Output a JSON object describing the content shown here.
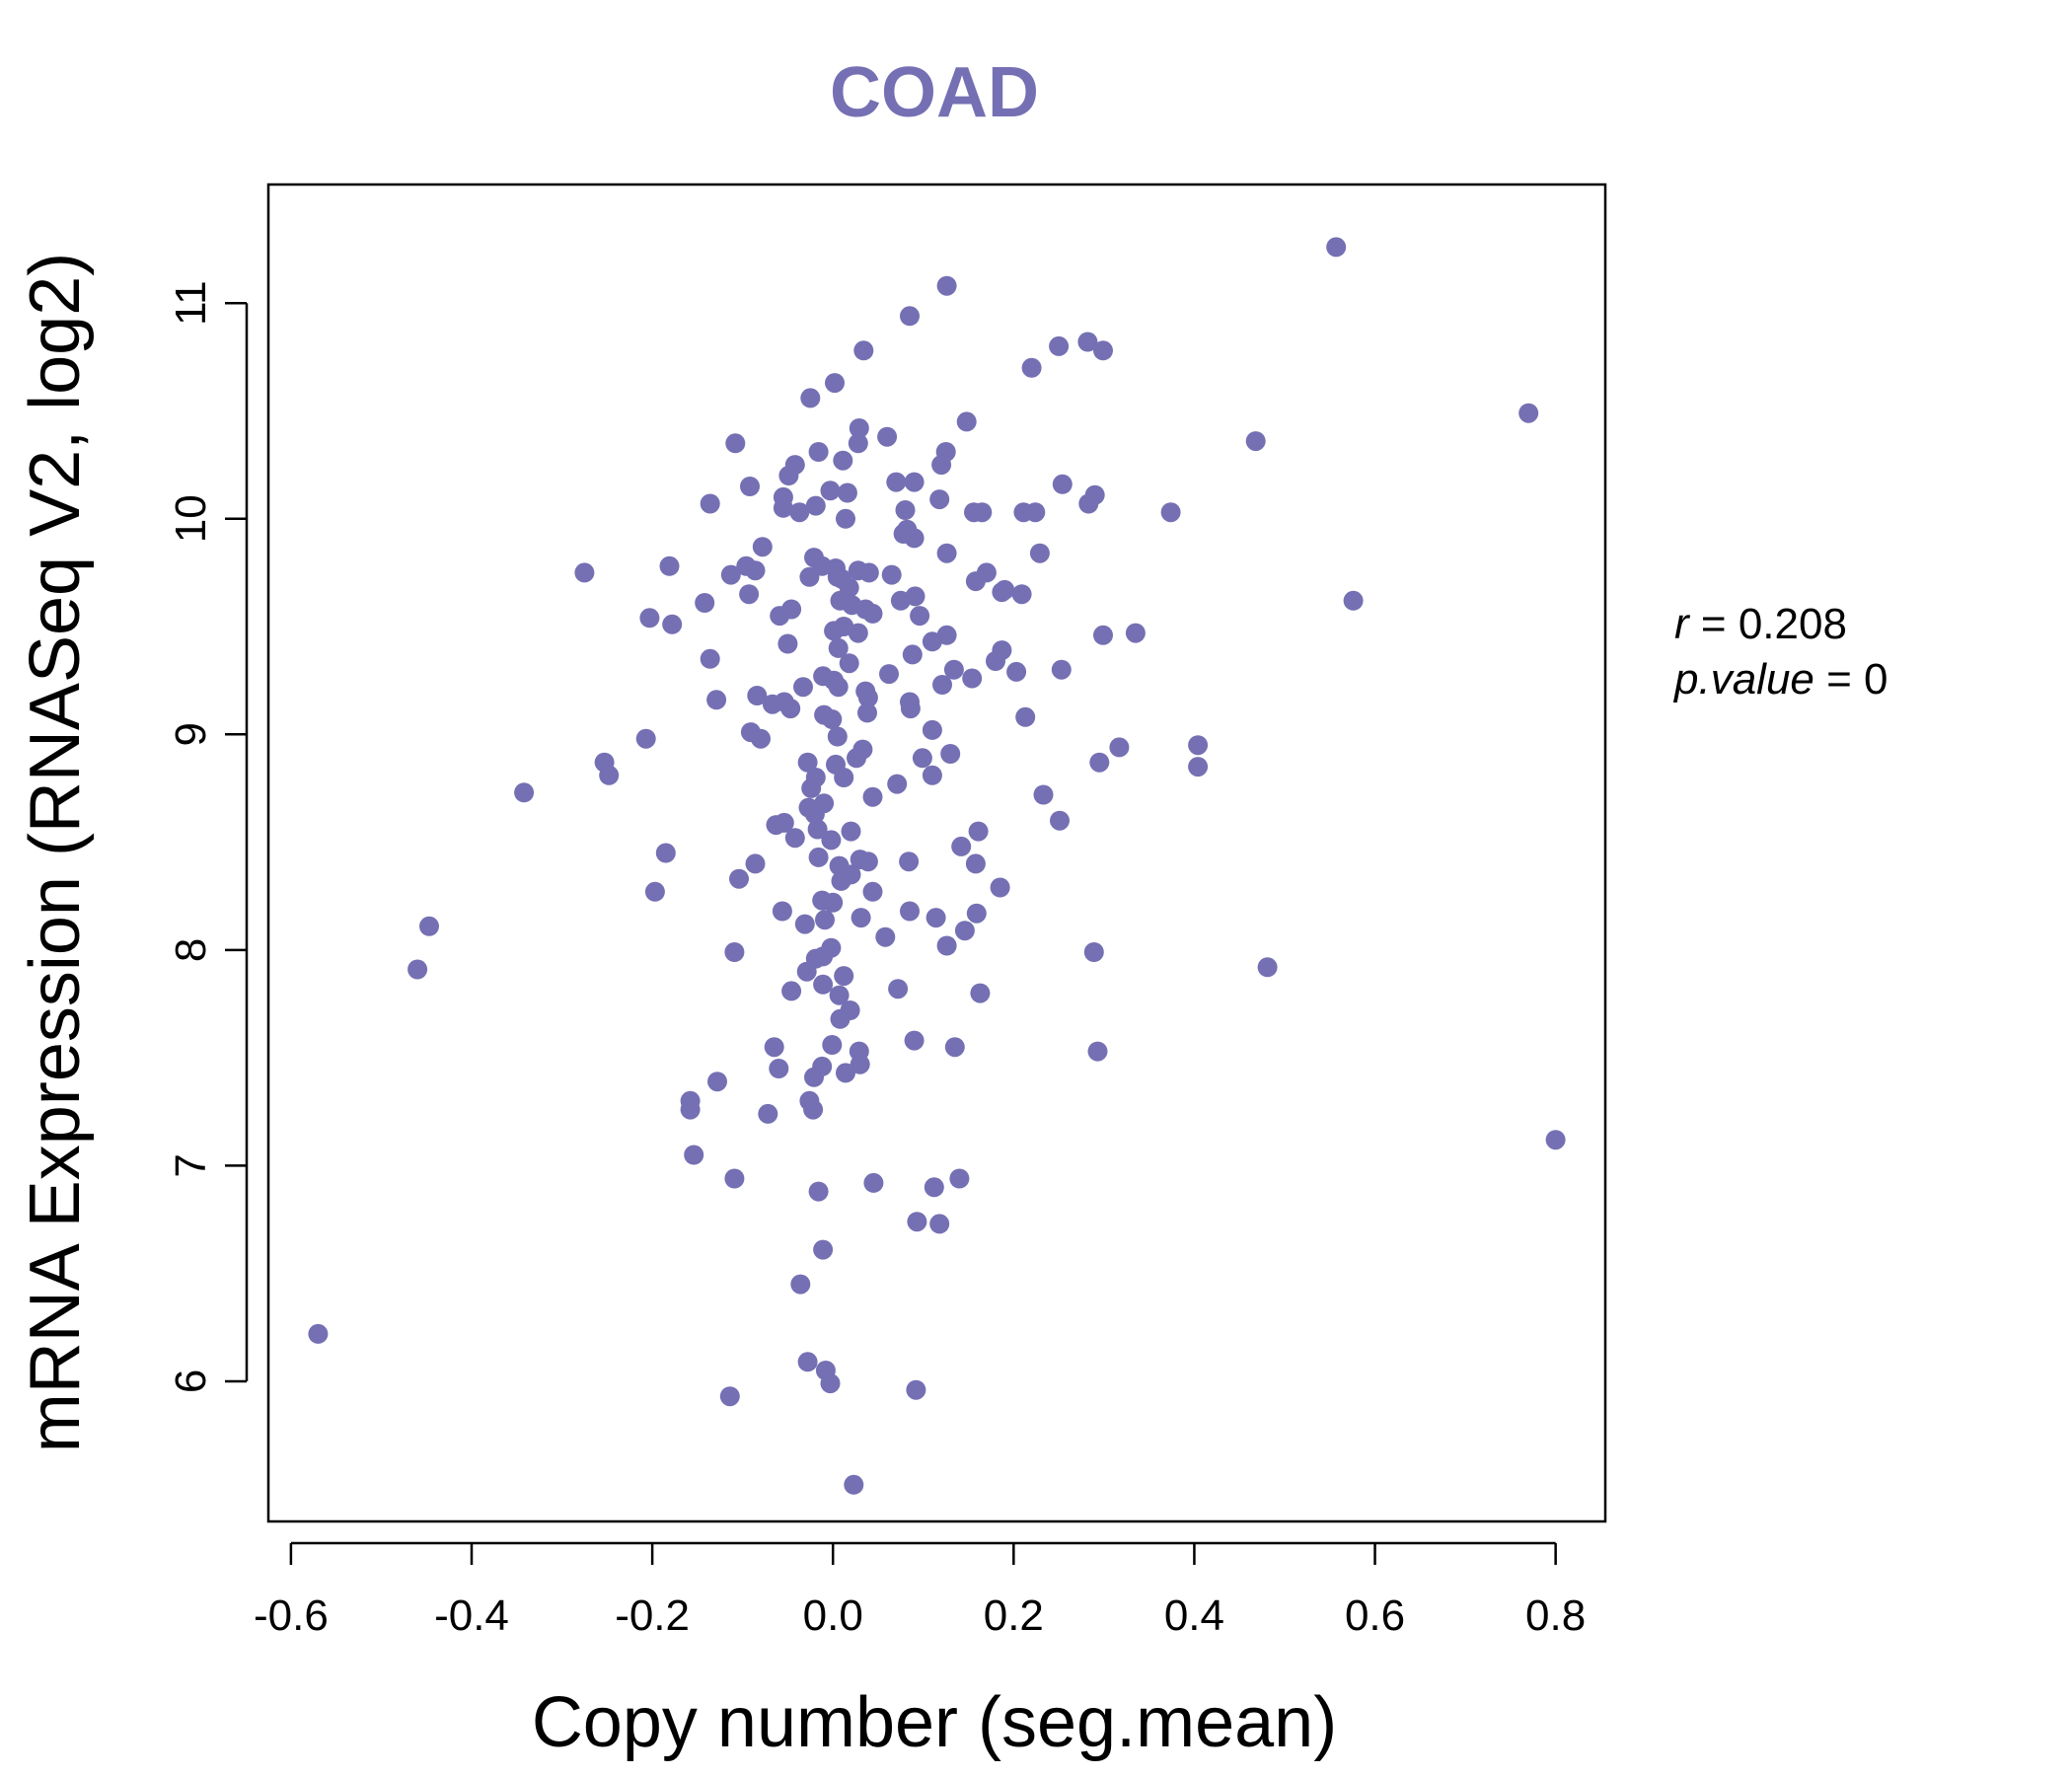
{
  "chart_data": {
    "type": "scatter",
    "title": "COAD",
    "xlabel": "Copy number (seg.mean)",
    "ylabel": "mRNA Expression (RNASeq V2, log2)",
    "xlim": [
      -0.6,
      0.8
    ],
    "ylim": [
      5.5,
      11.3
    ],
    "xticks": [
      -0.6,
      -0.4,
      -0.2,
      0.0,
      0.2,
      0.4,
      0.6,
      0.8
    ],
    "xtick_labels": [
      "-0.6",
      "-0.4",
      "-0.2",
      "0.0",
      "0.2",
      "0.4",
      "0.6",
      "0.8"
    ],
    "yticks": [
      6,
      7,
      8,
      9,
      10,
      11
    ],
    "ytick_labels": [
      "6",
      "7",
      "8",
      "9",
      "10",
      "11"
    ],
    "grid": false,
    "color": "#7570b3",
    "stats": {
      "r_label": "r",
      "r_value": "0.208",
      "p_label": "p.value",
      "p_value": "0"
    },
    "points": [
      [
        0.557,
        11.26
      ],
      [
        0.126,
        11.08
      ],
      [
        0.085,
        10.94
      ],
      [
        0.282,
        10.82
      ],
      [
        0.25,
        10.8
      ],
      [
        0.299,
        10.78
      ],
      [
        0.034,
        10.78
      ],
      [
        0.22,
        10.7
      ],
      [
        0.002,
        10.63
      ],
      [
        -0.025,
        10.56
      ],
      [
        0.77,
        10.49
      ],
      [
        0.148,
        10.45
      ],
      [
        0.029,
        10.42
      ],
      [
        0.06,
        10.38
      ],
      [
        0.468,
        10.36
      ],
      [
        -0.108,
        10.35
      ],
      [
        0.028,
        10.35
      ],
      [
        0.125,
        10.31
      ],
      [
        -0.016,
        10.31
      ],
      [
        0.011,
        10.27
      ],
      [
        0.12,
        10.25
      ],
      [
        -0.042,
        10.25
      ],
      [
        -0.049,
        10.2
      ],
      [
        0.07,
        10.17
      ],
      [
        0.09,
        10.17
      ],
      [
        -0.092,
        10.15
      ],
      [
        0.254,
        10.16
      ],
      [
        -0.003,
        10.13
      ],
      [
        0.016,
        10.12
      ],
      [
        0.29,
        10.11
      ],
      [
        -0.055,
        10.1
      ],
      [
        0.283,
        10.07
      ],
      [
        -0.136,
        10.07
      ],
      [
        0.118,
        10.09
      ],
      [
        -0.019,
        10.06
      ],
      [
        -0.055,
        10.05
      ],
      [
        -0.037,
        10.03
      ],
      [
        0.156,
        10.03
      ],
      [
        0.165,
        10.03
      ],
      [
        0.211,
        10.03
      ],
      [
        0.224,
        10.03
      ],
      [
        0.374,
        10.03
      ],
      [
        0.014,
        10.0
      ],
      [
        0.08,
        10.04
      ],
      [
        0.082,
        9.95
      ],
      [
        0.09,
        9.91
      ],
      [
        0.078,
        9.93
      ],
      [
        -0.078,
        9.87
      ],
      [
        0.126,
        9.84
      ],
      [
        0.229,
        9.84
      ],
      [
        -0.021,
        9.82
      ],
      [
        -0.181,
        9.78
      ],
      [
        -0.096,
        9.78
      ],
      [
        -0.012,
        9.78
      ],
      [
        0.003,
        9.77
      ],
      [
        -0.113,
        9.74
      ],
      [
        -0.086,
        9.76
      ],
      [
        0.028,
        9.76
      ],
      [
        0.04,
        9.75
      ],
      [
        -0.275,
        9.75
      ],
      [
        -0.026,
        9.73
      ],
      [
        0.065,
        9.74
      ],
      [
        0.158,
        9.71
      ],
      [
        0.17,
        9.75
      ],
      [
        0.01,
        9.72
      ],
      [
        0.005,
        9.73
      ],
      [
        0.19,
        9.67
      ],
      [
        0.018,
        9.68
      ],
      [
        0.187,
        9.66
      ],
      [
        0.209,
        9.65
      ],
      [
        -0.093,
        9.65
      ],
      [
        0.091,
        9.64
      ],
      [
        0.075,
        9.62
      ],
      [
        0.576,
        9.62
      ],
      [
        -0.142,
        9.61
      ],
      [
        0.008,
        9.62
      ],
      [
        0.021,
        9.6
      ],
      [
        0.036,
        9.58
      ],
      [
        -0.046,
        9.58
      ],
      [
        0.044,
        9.56
      ],
      [
        0.096,
        9.55
      ],
      [
        -0.059,
        9.55
      ],
      [
        -0.203,
        9.54
      ],
      [
        -0.178,
        9.51
      ],
      [
        0.012,
        9.5
      ],
      [
        0.028,
        9.47
      ],
      [
        0.001,
        9.48
      ],
      [
        0.335,
        9.47
      ],
      [
        0.299,
        9.46
      ],
      [
        0.126,
        9.46
      ],
      [
        0.11,
        9.43
      ],
      [
        -0.05,
        9.42
      ],
      [
        0.006,
        9.4
      ],
      [
        0.187,
        9.39
      ],
      [
        0.088,
        9.37
      ],
      [
        -0.136,
        9.35
      ],
      [
        0.18,
        9.34
      ],
      [
        0.018,
        9.33
      ],
      [
        0.253,
        9.3
      ],
      [
        0.134,
        9.3
      ],
      [
        0.203,
        9.29
      ],
      [
        0.062,
        9.28
      ],
      [
        0.154,
        9.26
      ],
      [
        -0.011,
        9.27
      ],
      [
        0.001,
        9.25
      ],
      [
        0.121,
        9.23
      ],
      [
        0.006,
        9.22
      ],
      [
        -0.033,
        9.22
      ],
      [
        0.036,
        9.2
      ],
      [
        0.039,
        9.17
      ],
      [
        -0.084,
        9.18
      ],
      [
        -0.129,
        9.16
      ],
      [
        -0.067,
        9.14
      ],
      [
        0.085,
        9.15
      ],
      [
        -0.054,
        9.15
      ],
      [
        -0.047,
        9.12
      ],
      [
        -0.01,
        9.09
      ],
      [
        0.086,
        9.12
      ],
      [
        0.038,
        9.1
      ],
      [
        0.213,
        9.08
      ],
      [
        -0.001,
        9.07
      ],
      [
        0.11,
        9.02
      ],
      [
        -0.091,
        9.01
      ],
      [
        -0.08,
        8.98
      ],
      [
        0.005,
        8.99
      ],
      [
        -0.207,
        8.98
      ],
      [
        0.404,
        8.95
      ],
      [
        0.317,
        8.94
      ],
      [
        0.033,
        8.93
      ],
      [
        0.13,
        8.91
      ],
      [
        0.026,
        8.89
      ],
      [
        0.099,
        8.89
      ],
      [
        0.003,
        8.86
      ],
      [
        -0.028,
        8.87
      ],
      [
        0.295,
        8.87
      ],
      [
        0.404,
        8.85
      ],
      [
        -0.253,
        8.87
      ],
      [
        -0.248,
        8.81
      ],
      [
        -0.019,
        8.8
      ],
      [
        0.11,
        8.81
      ],
      [
        0.012,
        8.8
      ],
      [
        0.071,
        8.77
      ],
      [
        -0.024,
        8.75
      ],
      [
        0.233,
        8.72
      ],
      [
        -0.342,
        8.73
      ],
      [
        0.044,
        8.71
      ],
      [
        -0.027,
        8.66
      ],
      [
        -0.01,
        8.68
      ],
      [
        -0.02,
        8.63
      ],
      [
        0.251,
        8.6
      ],
      [
        -0.063,
        8.58
      ],
      [
        -0.054,
        8.59
      ],
      [
        -0.017,
        8.56
      ],
      [
        0.02,
        8.55
      ],
      [
        0.161,
        8.55
      ],
      [
        -0.042,
        8.52
      ],
      [
        -0.002,
        8.51
      ],
      [
        0.142,
        8.48
      ],
      [
        -0.185,
        8.45
      ],
      [
        -0.016,
        8.43
      ],
      [
        0.03,
        8.42
      ],
      [
        0.039,
        8.41
      ],
      [
        0.084,
        8.41
      ],
      [
        0.007,
        8.39
      ],
      [
        0.158,
        8.4
      ],
      [
        -0.086,
        8.4
      ],
      [
        -0.104,
        8.33
      ],
      [
        0.02,
        8.35
      ],
      [
        0.009,
        8.32
      ],
      [
        0.044,
        8.27
      ],
      [
        0.185,
        8.29
      ],
      [
        -0.197,
        8.27
      ],
      [
        0.0,
        8.22
      ],
      [
        -0.012,
        8.23
      ],
      [
        0.159,
        8.17
      ],
      [
        -0.056,
        8.18
      ],
      [
        0.085,
        8.18
      ],
      [
        0.031,
        8.15
      ],
      [
        0.114,
        8.15
      ],
      [
        -0.009,
        8.14
      ],
      [
        -0.031,
        8.12
      ],
      [
        -0.447,
        8.11
      ],
      [
        0.146,
        8.09
      ],
      [
        0.058,
        8.06
      ],
      [
        0.126,
        8.02
      ],
      [
        -0.002,
        8.01
      ],
      [
        -0.011,
        7.97
      ],
      [
        -0.019,
        7.96
      ],
      [
        0.289,
        7.99
      ],
      [
        -0.109,
        7.99
      ],
      [
        0.481,
        7.92
      ],
      [
        -0.46,
        7.91
      ],
      [
        -0.029,
        7.9
      ],
      [
        0.012,
        7.88
      ],
      [
        -0.011,
        7.84
      ],
      [
        0.072,
        7.82
      ],
      [
        -0.046,
        7.81
      ],
      [
        0.163,
        7.8
      ],
      [
        0.007,
        7.79
      ],
      [
        0.019,
        7.72
      ],
      [
        0.008,
        7.68
      ],
      [
        -0.001,
        7.56
      ],
      [
        0.09,
        7.58
      ],
      [
        0.135,
        7.55
      ],
      [
        -0.065,
        7.55
      ],
      [
        0.029,
        7.53
      ],
      [
        0.293,
        7.53
      ],
      [
        -0.012,
        7.46
      ],
      [
        0.03,
        7.47
      ],
      [
        -0.06,
        7.45
      ],
      [
        0.014,
        7.43
      ],
      [
        -0.021,
        7.41
      ],
      [
        -0.128,
        7.39
      ],
      [
        -0.158,
        7.3
      ],
      [
        -0.158,
        7.26
      ],
      [
        -0.026,
        7.3
      ],
      [
        -0.022,
        7.26
      ],
      [
        -0.072,
        7.24
      ],
      [
        0.8,
        7.12
      ],
      [
        -0.154,
        7.05
      ],
      [
        0.14,
        6.94
      ],
      [
        -0.109,
        6.94
      ],
      [
        0.045,
        6.92
      ],
      [
        0.112,
        6.9
      ],
      [
        -0.016,
        6.88
      ],
      [
        0.093,
        6.74
      ],
      [
        0.118,
        6.73
      ],
      [
        -0.011,
        6.61
      ],
      [
        -0.036,
        6.45
      ],
      [
        -0.028,
        6.09
      ],
      [
        -0.008,
        6.05
      ],
      [
        -0.003,
        5.99
      ],
      [
        0.092,
        5.96
      ],
      [
        -0.114,
        5.93
      ],
      [
        -0.57,
        6.22
      ],
      [
        0.023,
        5.52
      ]
    ]
  }
}
